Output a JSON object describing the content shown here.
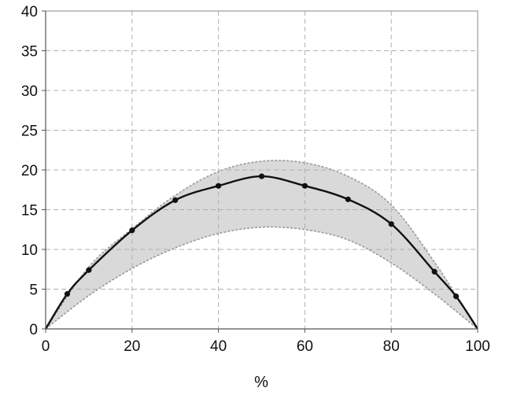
{
  "chart_data": {
    "type": "line",
    "title": "",
    "xlabel": "%",
    "ylabel": "",
    "xlim": [
      0,
      100
    ],
    "ylim": [
      0,
      40
    ],
    "x_ticks": [
      0,
      20,
      40,
      60,
      80,
      100
    ],
    "y_ticks": [
      0,
      5,
      10,
      15,
      20,
      25,
      30,
      35,
      40
    ],
    "grid": true,
    "legend": "none",
    "series": [
      {
        "role": "main",
        "marker": "circle",
        "color": "#111111",
        "points": [
          [
            0,
            0
          ],
          [
            5,
            4.4
          ],
          [
            10,
            7.4
          ],
          [
            20,
            12.4
          ],
          [
            30,
            16.2
          ],
          [
            40,
            18.0
          ],
          [
            50,
            19.2
          ],
          [
            60,
            18.0
          ],
          [
            70,
            16.3
          ],
          [
            80,
            13.2
          ],
          [
            90,
            7.2
          ],
          [
            95,
            4.1
          ],
          [
            100,
            0
          ]
        ]
      }
    ],
    "band": {
      "fill_color": "#d9d9d9",
      "edge_color": "#9a9a9a",
      "upper": [
        [
          0,
          0
        ],
        [
          10,
          7.8
        ],
        [
          20,
          12.6
        ],
        [
          30,
          16.8
        ],
        [
          40,
          19.8
        ],
        [
          50,
          21.1
        ],
        [
          60,
          20.9
        ],
        [
          70,
          19.2
        ],
        [
          80,
          15.6
        ],
        [
          90,
          8.4
        ],
        [
          100,
          0
        ]
      ],
      "lower": [
        [
          0,
          0
        ],
        [
          10,
          4.2
        ],
        [
          20,
          7.6
        ],
        [
          30,
          10.2
        ],
        [
          40,
          12.0
        ],
        [
          50,
          12.8
        ],
        [
          60,
          12.5
        ],
        [
          70,
          11.2
        ],
        [
          80,
          8.3
        ],
        [
          90,
          4.4
        ],
        [
          100,
          0
        ]
      ]
    }
  }
}
